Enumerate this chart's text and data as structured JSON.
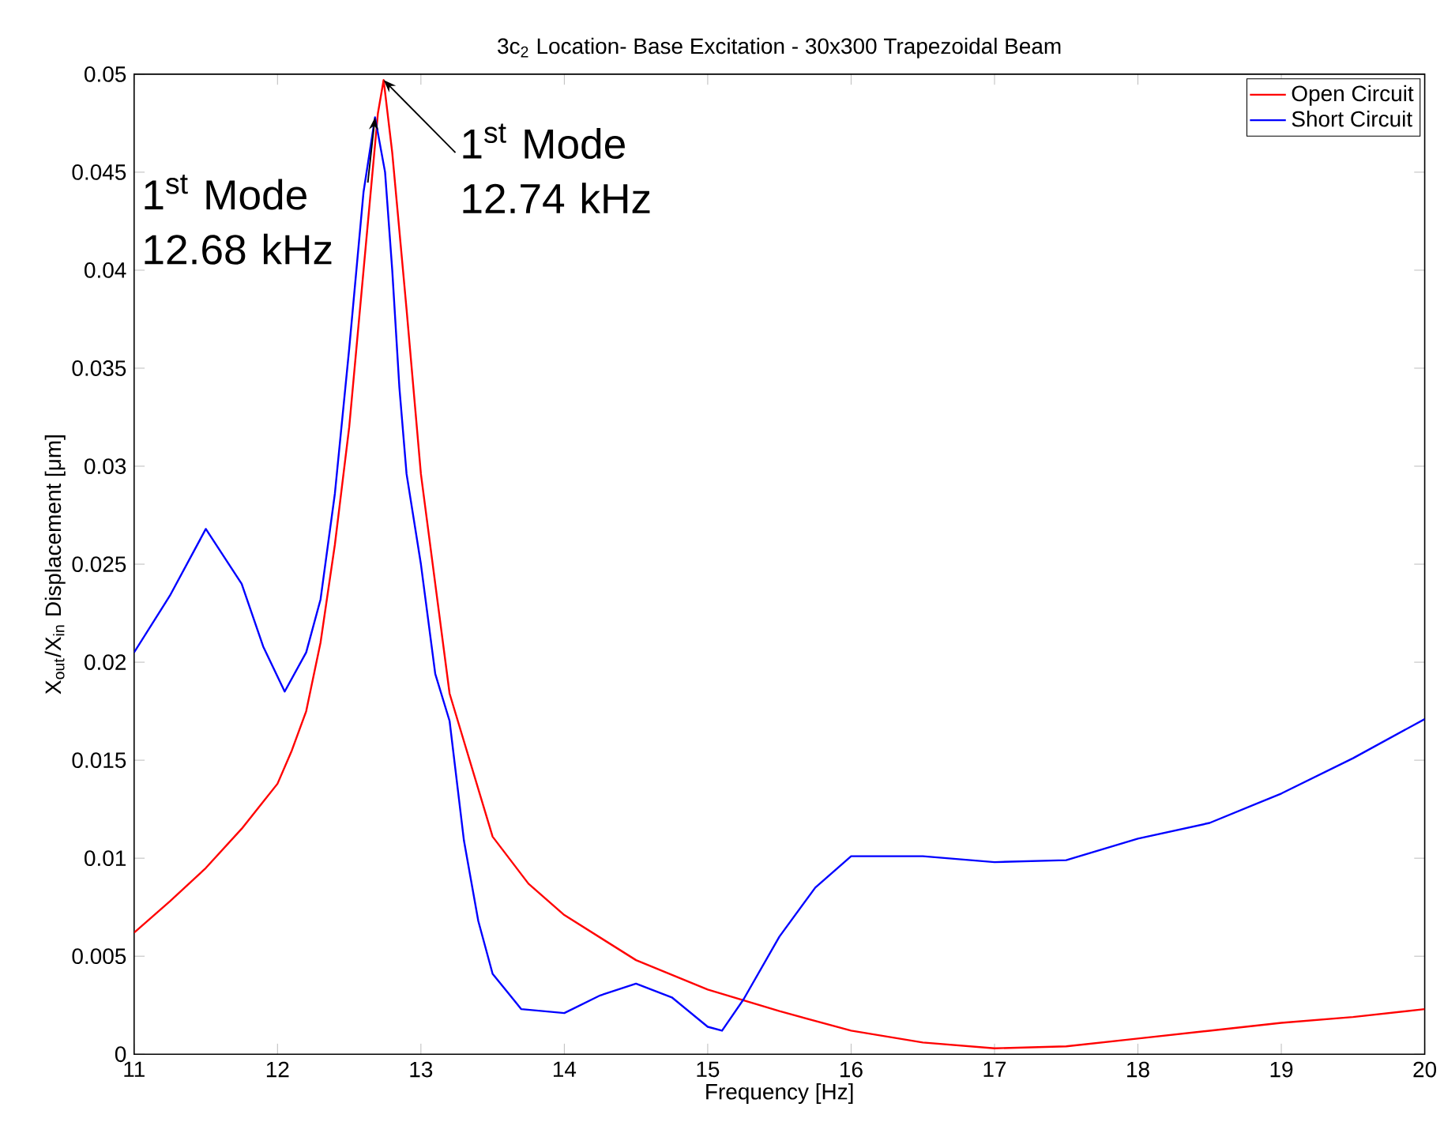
{
  "chart_data": {
    "type": "line",
    "title": "3c$_{2}$ Location- Base Excitation - 30x300 Trapezoidal Beam",
    "xlabel": "Frequency [Hz]",
    "ylabel": "X$_{out}$/X$_{in}$ Displacement [μm]",
    "xlim": [
      11,
      20
    ],
    "ylim": [
      0,
      0.05
    ],
    "xticks": [
      11,
      12,
      13,
      14,
      15,
      16,
      17,
      18,
      19,
      20
    ],
    "yticks": [
      0,
      0.005,
      0.01,
      0.015,
      0.02,
      0.025,
      0.03,
      0.035,
      0.04,
      0.045,
      0.05
    ],
    "legend": "top right",
    "series": [
      {
        "name": "Open Circuit",
        "color": "#ff0000",
        "x": [
          11,
          11.25,
          11.5,
          11.75,
          12,
          12.1,
          12.2,
          12.3,
          12.4,
          12.5,
          12.6,
          12.7,
          12.74,
          12.8,
          12.9,
          13,
          13.2,
          13.5,
          13.75,
          14,
          14.5,
          15,
          15.5,
          16,
          16.5,
          17,
          17.5,
          18,
          18.5,
          19,
          19.5,
          20
        ],
        "values": [
          0.0062,
          0.0078,
          0.0095,
          0.0115,
          0.0138,
          0.0155,
          0.0175,
          0.021,
          0.026,
          0.032,
          0.04,
          0.048,
          0.0497,
          0.046,
          0.038,
          0.0296,
          0.0184,
          0.0111,
          0.0087,
          0.0071,
          0.0048,
          0.0033,
          0.0022,
          0.0012,
          0.0006,
          0.0003,
          0.0004,
          0.0008,
          0.0012,
          0.0016,
          0.0019,
          0.0023
        ]
      },
      {
        "name": "Short Circuit",
        "color": "#0000ff",
        "x": [
          11,
          11.25,
          11.5,
          11.75,
          11.9,
          12.05,
          12.2,
          12.3,
          12.4,
          12.5,
          12.6,
          12.68,
          12.75,
          12.8,
          12.85,
          12.9,
          13,
          13.1,
          13.2,
          13.3,
          13.4,
          13.5,
          13.7,
          14,
          14.25,
          14.5,
          14.75,
          15,
          15.1,
          15.25,
          15.5,
          15.75,
          16,
          16.5,
          17,
          17.5,
          18,
          18.5,
          19,
          19.5,
          20
        ],
        "values": [
          0.0205,
          0.0234,
          0.0268,
          0.024,
          0.0208,
          0.0185,
          0.0205,
          0.0232,
          0.0286,
          0.036,
          0.044,
          0.0478,
          0.045,
          0.04,
          0.034,
          0.0296,
          0.025,
          0.0194,
          0.017,
          0.0109,
          0.0068,
          0.0041,
          0.0023,
          0.0021,
          0.003,
          0.0036,
          0.0029,
          0.0014,
          0.0012,
          0.0028,
          0.006,
          0.0085,
          0.0101,
          0.0101,
          0.0098,
          0.0099,
          0.011,
          0.0118,
          0.0133,
          0.0151,
          0.0171
        ]
      }
    ],
    "annotations": [
      {
        "text": "1$^{st}$ Mode 12.74 kHz",
        "x": 12.74,
        "y": 0.0497
      },
      {
        "text": "1$^{st}$ Mode 12.68 kHz",
        "x": 12.68,
        "y": 0.0478
      }
    ]
  }
}
